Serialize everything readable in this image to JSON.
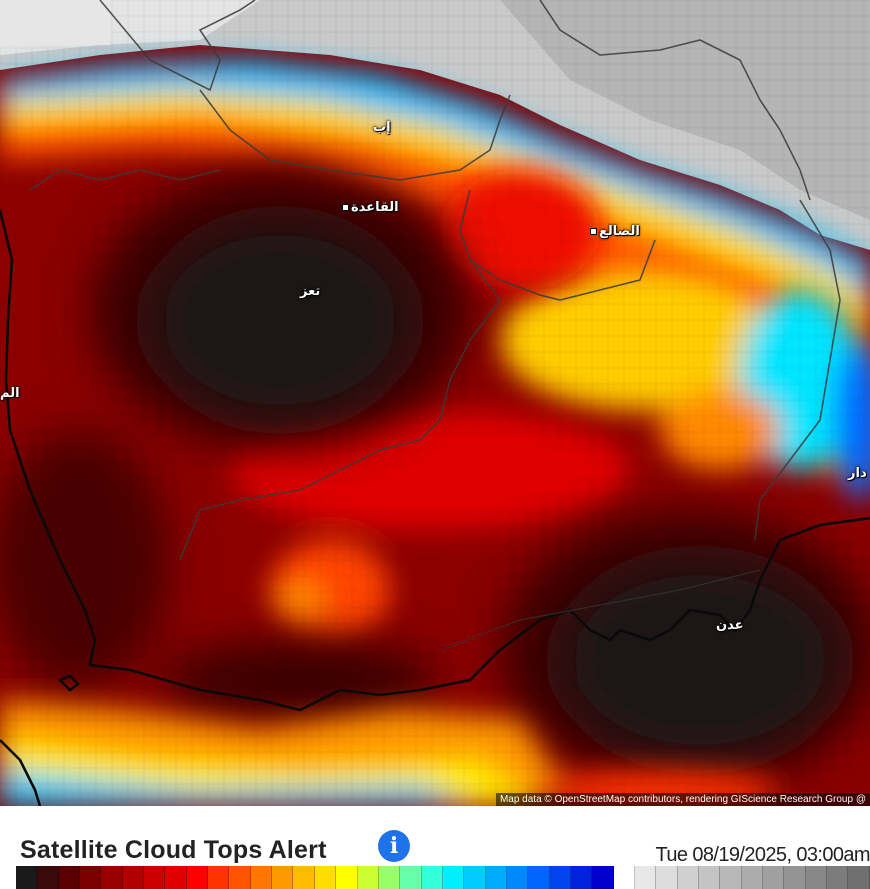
{
  "map": {
    "places": [
      {
        "id": "ibb",
        "name": "إب"
      },
      {
        "id": "qaida",
        "name": "القاعدة"
      },
      {
        "id": "dhale",
        "name": "الضالع"
      },
      {
        "id": "taiz",
        "name": "تعز"
      },
      {
        "id": "mokha",
        "name": "الم"
      },
      {
        "id": "lahij",
        "name": "دار"
      },
      {
        "id": "aden",
        "name": "عدن"
      }
    ],
    "attribution": "Map data © OpenStreetMap contributors, rendering GIScience Research Group @"
  },
  "legend": {
    "title": "Satellite Cloud Tops Alert",
    "info_icon": "info-icon",
    "timestamp": "Tue 08/19/2025, 03:00am",
    "colors": [
      "#1a1a1a",
      "#3a0a0a",
      "#5a0000",
      "#7a0000",
      "#990000",
      "#b00000",
      "#cc0000",
      "#e00000",
      "#ff0000",
      "#ff3300",
      "#ff5500",
      "#ff7700",
      "#ff9900",
      "#ffbb00",
      "#ffdd00",
      "#ffff00",
      "#ccff33",
      "#99ff66",
      "#66ffaa",
      "#33ffdd",
      "#00eeff",
      "#00ccff",
      "#00aaff",
      "#0088ff",
      "#0066ff",
      "#0044ee",
      "#0022dd",
      "#0000cc",
      "#ffffff",
      "#e8e8e8",
      "#dddddd",
      "#d0d0d0",
      "#c4c4c4",
      "#b8b8b8",
      "#acacac",
      "#a0a0a0",
      "#949494",
      "#888888",
      "#7c7c7c",
      "#707070"
    ]
  }
}
